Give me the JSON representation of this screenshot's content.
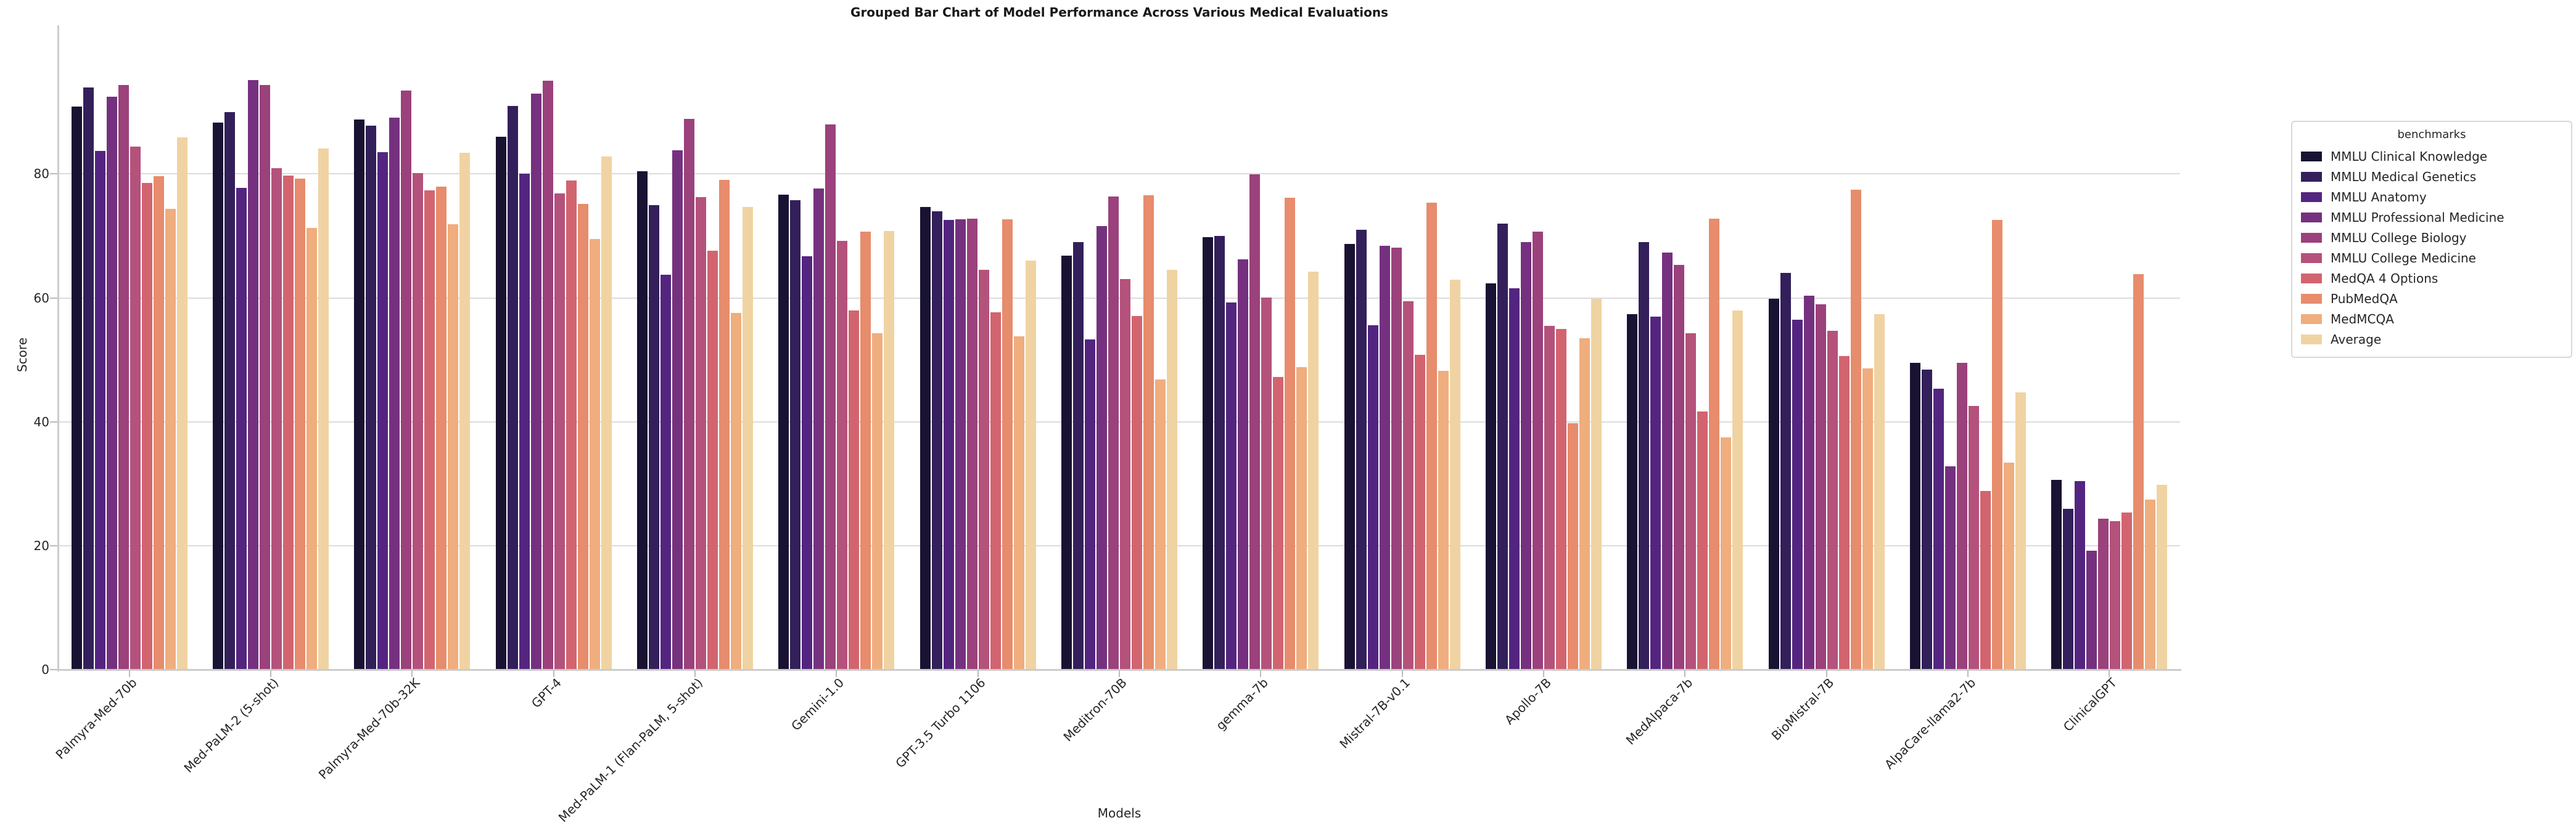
{
  "title": "Grouped Bar Chart of Model Performance Across Various Medical Evaluations",
  "chart_data": {
    "type": "bar",
    "title": "Grouped Bar Chart of Model Performance Across Various Medical Evaluations",
    "xlabel": "Models",
    "ylabel": "Score",
    "ylim": [
      0,
      104
    ],
    "yticks": [
      0,
      20,
      40,
      60,
      80
    ],
    "grid": true,
    "legend_title": "benchmarks",
    "legend_position": "right-outside",
    "categories": [
      "Palmyra-Med-70b",
      "Med-PaLM-2 (5-shot)",
      "Palmyra-Med-70b-32K",
      "GPT-4",
      "Med-PaLM-1 (Flan-PaLM, 5-shot)",
      "Gemini-1.0",
      "GPT-3.5 Turbo 1106",
      "Meditron-70B",
      "gemma-7b",
      "Mistral-7B-v0.1",
      "Apollo-7B",
      "MedAlpaca-7b",
      "BioMistral-7B",
      "AlpaCare-llama2-7b",
      "ClinicalGPT"
    ],
    "series": [
      {
        "name": "MMLU Clinical Knowledge",
        "color": "#191232",
        "values": [
          90.9,
          88.3,
          88.8,
          86.0,
          80.4,
          76.7,
          74.7,
          66.8,
          69.8,
          68.7,
          62.3,
          57.4,
          59.9,
          49.5,
          30.6
        ]
      },
      {
        "name": "MMLU Medical Genetics",
        "color": "#33205a",
        "values": [
          94.0,
          90.0,
          87.8,
          91.0,
          75.0,
          75.8,
          74.0,
          69.0,
          70.0,
          71.0,
          72.0,
          69.0,
          64.0,
          48.4,
          26.0
        ]
      },
      {
        "name": "MMLU Anatomy",
        "color": "#542580",
        "values": [
          83.7,
          77.8,
          83.5,
          80.0,
          63.7,
          66.7,
          72.6,
          53.3,
          59.3,
          55.6,
          61.5,
          57.0,
          56.5,
          45.3,
          30.4
        ]
      },
      {
        "name": "MMLU Professional Medicine",
        "color": "#75317f",
        "values": [
          92.5,
          95.2,
          89.1,
          93.0,
          83.8,
          77.7,
          72.7,
          71.6,
          66.2,
          68.4,
          69.0,
          67.3,
          60.4,
          32.8,
          19.2
        ]
      },
      {
        "name": "MMLU College Biology",
        "color": "#9b417b",
        "values": [
          94.4,
          94.4,
          93.5,
          95.1,
          88.9,
          88.0,
          72.8,
          76.4,
          79.9,
          68.1,
          70.7,
          65.3,
          59.0,
          49.5,
          24.4
        ]
      },
      {
        "name": "MMLU College Medicine",
        "color": "#b4527b",
        "values": [
          84.4,
          80.9,
          80.1,
          76.9,
          76.3,
          69.2,
          64.5,
          63.0,
          60.1,
          59.5,
          55.5,
          54.3,
          54.7,
          42.6,
          24.0
        ]
      },
      {
        "name": "MedQA 4 Options",
        "color": "#d2646f",
        "values": [
          78.5,
          79.7,
          77.4,
          78.9,
          67.6,
          58.0,
          57.7,
          57.1,
          47.2,
          50.8,
          55.0,
          41.7,
          50.6,
          28.8,
          25.4
        ]
      },
      {
        "name": "PubMedQA",
        "color": "#e78c6c",
        "values": [
          79.6,
          79.2,
          78.0,
          75.2,
          79.0,
          70.7,
          72.7,
          76.6,
          76.2,
          75.4,
          39.8,
          72.8,
          77.5,
          72.6,
          63.8
        ]
      },
      {
        "name": "MedMCQA",
        "color": "#f0ad7e",
        "values": [
          74.4,
          71.3,
          71.9,
          69.5,
          57.6,
          54.3,
          53.8,
          46.8,
          48.8,
          48.2,
          53.5,
          37.5,
          48.6,
          33.4,
          27.4
        ]
      },
      {
        "name": "Average",
        "color": "#f0d3a2",
        "values": [
          85.9,
          84.1,
          83.4,
          82.8,
          74.7,
          70.8,
          66.0,
          64.5,
          64.2,
          62.9,
          59.9,
          58.0,
          57.4,
          44.7,
          29.8
        ]
      }
    ]
  }
}
